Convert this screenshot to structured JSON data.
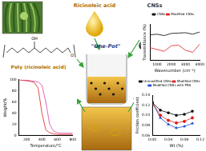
{
  "labels": {
    "ricinoleic_acid": "Ricinoleic acid",
    "cnss": "CNSs",
    "polymer": "Poly (ricinoleic acid)",
    "process": "\"One-Pot\"",
    "polymer_atoms": [
      "O",
      "OH"
    ]
  },
  "chart_data": [
    {
      "type": "line",
      "x_label": "Wavenumber (cm⁻¹)",
      "y_label": "Transmittance (%)",
      "x": [
        500,
        1000,
        1500,
        2000,
        2500,
        3000,
        3500,
        4000
      ],
      "xlim": [
        500,
        4000
      ],
      "xticks": [
        1000,
        2000,
        3000,
        4000
      ],
      "ylim": [
        0,
        100
      ],
      "yticks": [
        0,
        50,
        100
      ],
      "tick_labels": "x",
      "grid": false,
      "legend": "top",
      "series": [
        {
          "name": "CNSs",
          "color": "#000000",
          "values": [
            70,
            72,
            68,
            74,
            75,
            76,
            72,
            78
          ]
        },
        {
          "name": "Modified CNSs",
          "color": "#e0201b",
          "values": [
            35,
            30,
            25,
            40,
            42,
            28,
            22,
            45
          ]
        }
      ]
    },
    {
      "type": "line",
      "x_label": "Temperature/°C",
      "y_label": "Weight/%",
      "x": [
        100,
        150,
        200,
        250,
        300,
        350,
        400,
        450,
        500,
        550,
        600,
        650,
        700,
        750,
        800
      ],
      "xlim": [
        100,
        800
      ],
      "xticks": [
        200,
        400,
        600,
        800
      ],
      "ylim": [
        0,
        100
      ],
      "yticks": [
        0,
        20,
        40,
        60,
        80,
        100
      ],
      "grid": false,
      "series": [
        {
          "color": "#e0201b",
          "values": [
            100,
            99,
            98,
            97,
            95,
            85,
            40,
            10,
            5,
            3,
            2,
            2,
            2,
            2,
            2
          ]
        },
        {
          "color": "#d63fa8",
          "values": [
            100,
            99,
            99,
            98,
            97,
            96,
            90,
            60,
            20,
            8,
            5,
            4,
            4,
            4,
            4
          ]
        }
      ]
    },
    {
      "type": "line",
      "x_label": "Wt (%)",
      "y_label": "Friction coefficient",
      "x": [
        0,
        0.02,
        0.04,
        0.06,
        0.08,
        0.1
      ],
      "xlim": [
        0,
        0.12
      ],
      "xticks": [
        {
          "value": 0,
          "label": "0.00"
        },
        {
          "value": 0.04,
          "label": "0.04"
        },
        {
          "value": 0.08,
          "label": "0.08"
        },
        {
          "value": 0.12,
          "label": "0.12"
        }
      ],
      "ylim": [
        0.06,
        0.14
      ],
      "yticks": [
        {
          "value": 0.06,
          "label": "0.06"
        },
        {
          "value": 0.08,
          "label": "0.08"
        },
        {
          "value": 0.1,
          "label": "0.10"
        },
        {
          "value": 0.12,
          "label": "0.12"
        },
        {
          "value": 0.14,
          "label": "0.14"
        }
      ],
      "grid": false,
      "legend": "top",
      "series": [
        {
          "name": "Unmodified CNSs",
          "color": "#000000",
          "marker": "square",
          "values": [
            0.125,
            0.11,
            0.105,
            0.1,
            0.102,
            0.108
          ]
        },
        {
          "name": "Modified CNSs",
          "color": "#e0201b",
          "marker": "circle",
          "values": [
            0.125,
            0.1,
            0.09,
            0.085,
            0.088,
            0.095
          ]
        },
        {
          "name": "Modified CNSs with PRA",
          "color": "#1f4fd1",
          "marker": "triangle",
          "values": [
            0.125,
            0.095,
            0.082,
            0.075,
            0.078,
            0.084
          ]
        }
      ]
    }
  ]
}
